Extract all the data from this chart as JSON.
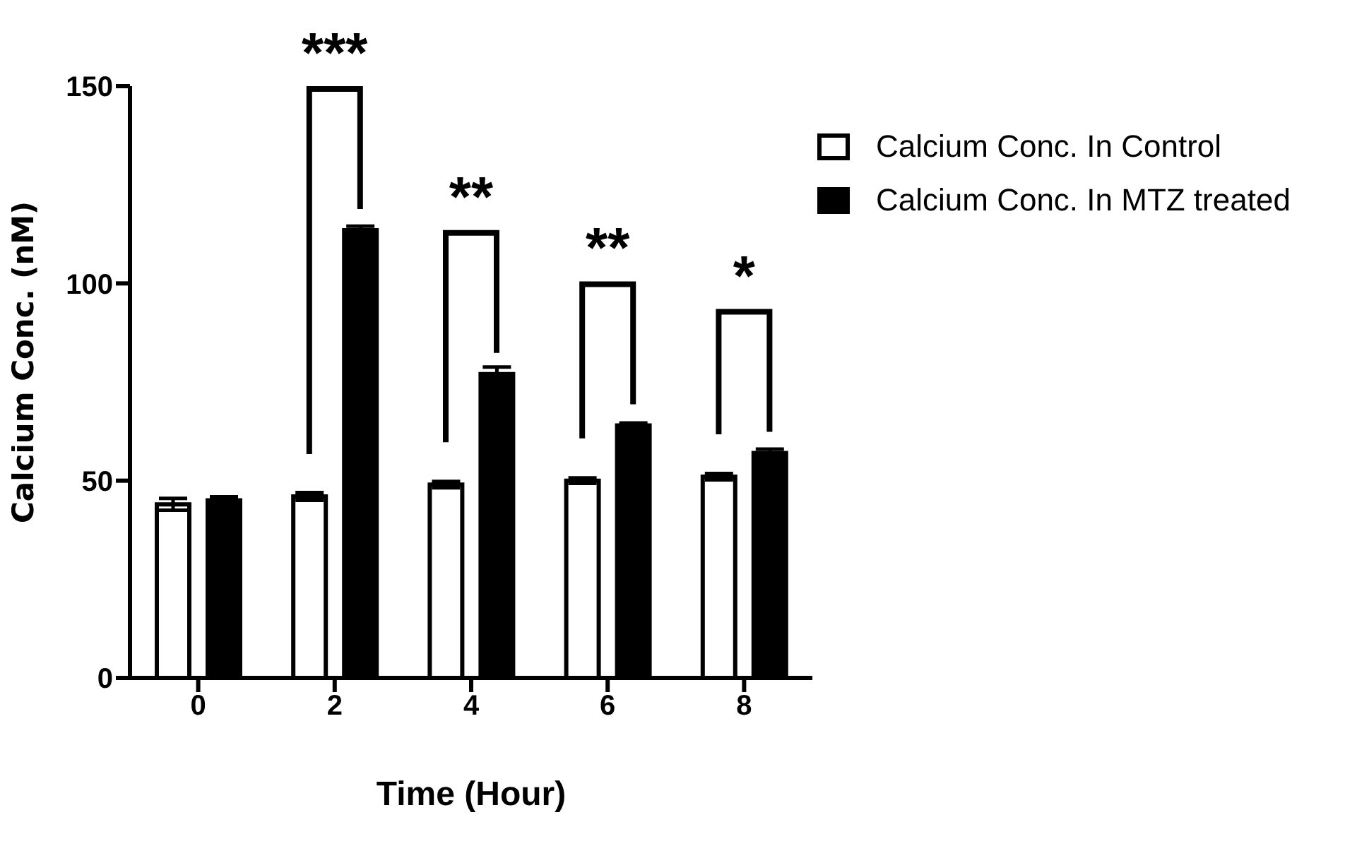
{
  "chart_data": {
    "type": "bar",
    "xlabel": "Time (Hour)",
    "ylabel": "Calcium Conc. (nM)",
    "categories": [
      "0",
      "2",
      "4",
      "6",
      "8"
    ],
    "series": [
      {
        "name": "Calcium Conc. In Control",
        "color": "#ffffff",
        "values": [
          44,
          46,
          49,
          50,
          51
        ],
        "errors": [
          1.5,
          1,
          0.8,
          0.7,
          0.8
        ]
      },
      {
        "name": "Calcium Conc. In MTZ treated",
        "color": "#000000",
        "values": [
          45,
          113.5,
          77,
          64,
          57
        ],
        "errors": [
          0.9,
          1,
          1.8,
          0.6,
          1
        ]
      }
    ],
    "ylim": [
      0,
      150
    ],
    "yticks": [
      0,
      50,
      100,
      150
    ],
    "grid": false,
    "legend": "top right",
    "annotations": [
      "***",
      "**",
      "**",
      "*"
    ]
  }
}
